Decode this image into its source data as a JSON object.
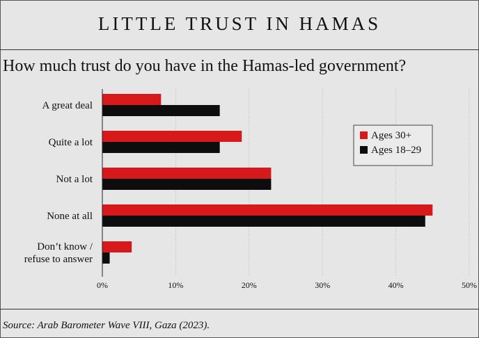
{
  "header": {
    "title": "LITTLE TRUST IN HAMAS",
    "subtitle": "How much trust do you have in the Hamas-led government?"
  },
  "footer": {
    "source": "Source: Arab Barometer Wave VIII, Gaza (2023)."
  },
  "chart_data": {
    "type": "bar",
    "orientation": "horizontal",
    "categories": [
      [
        "A great deal"
      ],
      [
        "Quite a lot"
      ],
      [
        "Not a lot"
      ],
      [
        "None at all"
      ],
      [
        "Don’t know /",
        "refuse to answer"
      ]
    ],
    "series": [
      {
        "name": "Ages 30+",
        "color": "#d7191c",
        "values": [
          8,
          19,
          23,
          45,
          4
        ]
      },
      {
        "name": "Ages 18–29",
        "color": "#0d0d0d",
        "values": [
          16,
          16,
          23,
          44,
          1
        ]
      }
    ],
    "xlim": [
      0,
      50
    ],
    "xticks": [
      0,
      10,
      20,
      30,
      40,
      50
    ],
    "tick_suffix": "%",
    "grid": "vertical",
    "legend_position": "upper-right"
  }
}
